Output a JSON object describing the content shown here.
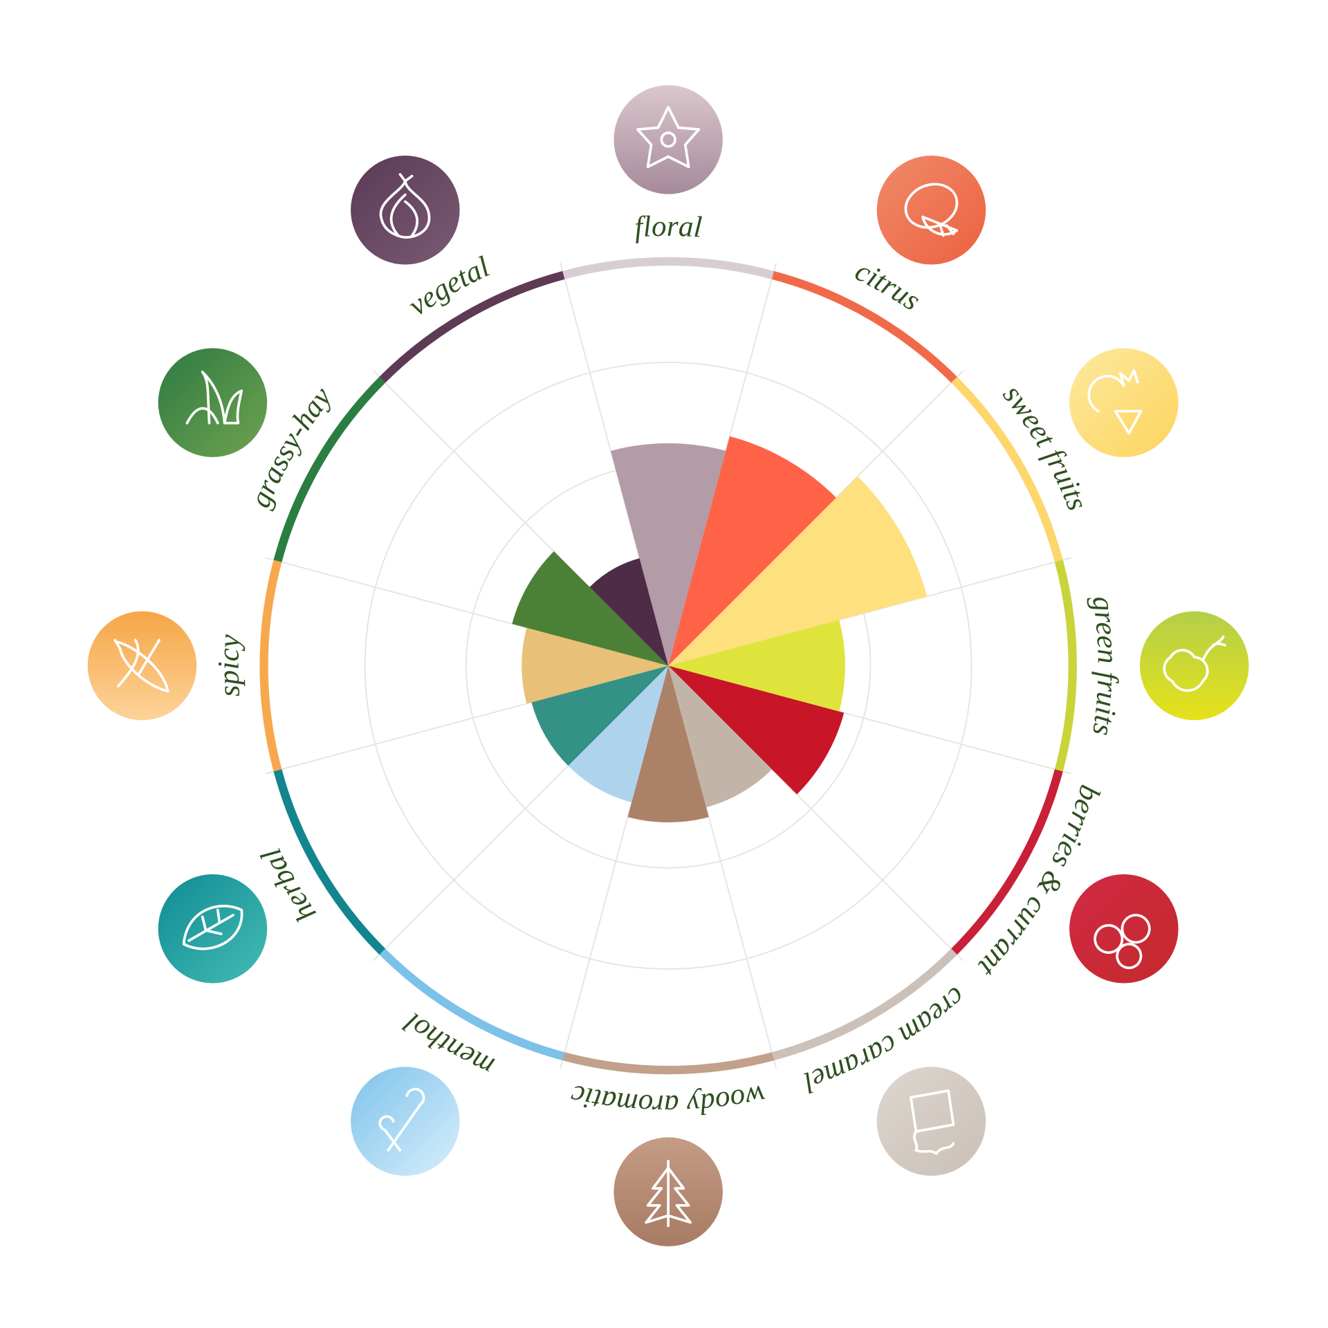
{
  "chart_data": {
    "type": "polar-area",
    "title": "",
    "rlim": [
      0,
      4
    ],
    "grid": true,
    "categories": [
      "floral",
      "citrus",
      "sweet fruits",
      "green fruits",
      "berries & currant",
      "cream caramel",
      "woody aromatic",
      "menthol",
      "herbal",
      "spicy",
      "grassy-hay",
      "vegetal"
    ],
    "values": [
      2.2,
      2.35,
      2.65,
      1.75,
      1.8,
      1.45,
      1.55,
      1.4,
      1.4,
      1.45,
      1.6,
      1.1
    ],
    "wedge_colors": [
      "#b49ba8",
      "#fe6347",
      "#fee07f",
      "#dfe43d",
      "#c81527",
      "#c2b5a8",
      "#ab8268",
      "#afd3ed",
      "#349185",
      "#e8c077",
      "#4b8136",
      "#4e2c47"
    ],
    "ring_colors": [
      "#d8cdd3",
      "#f06a4a",
      "#fdd66c",
      "#c8d43a",
      "#c82037",
      "#cbc1b8",
      "#c2a08c",
      "#7cc2e8",
      "#12858f",
      "#f7a84e",
      "#2b7d40",
      "#5e3a55"
    ],
    "icon_colors": [
      [
        "#dbc7cd",
        "#a68a9b"
      ],
      [
        "#f08a6a",
        "#ec613f"
      ],
      [
        "#fde9a0",
        "#fdd45c"
      ],
      [
        "#b3cf48",
        "#e6e21a"
      ],
      [
        "#d02a45",
        "#c42a2a"
      ],
      [
        "#ddd6cf",
        "#c9c0b7"
      ],
      [
        "#c49c86",
        "#a77b64"
      ],
      [
        "#7fc3ec",
        "#d8eefa"
      ],
      [
        "#0f8b93",
        "#44bcb4"
      ],
      [
        "#f5a646",
        "#fdd39a"
      ],
      [
        "#2f7a43",
        "#6ea34f"
      ],
      [
        "#5a3a55",
        "#7b5a73"
      ]
    ],
    "icons": [
      "flower-icon",
      "lemon-icon",
      "pineapple-melon-icon",
      "pear-apple-icon",
      "berries-icon",
      "cream-icon",
      "fir-tree-icon",
      "candy-cane-icon",
      "leaf-icon",
      "chili-pepper-icon",
      "grass-icon",
      "onion-icon"
    ]
  }
}
